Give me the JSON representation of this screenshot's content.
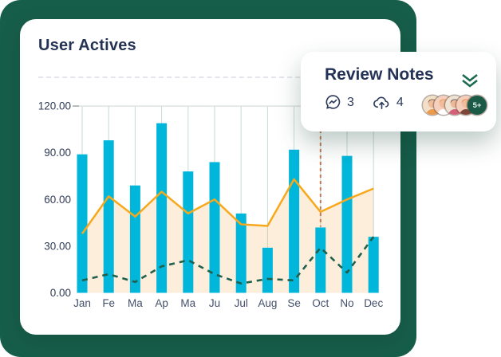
{
  "background_color": "#175E4A",
  "main_card": {
    "title": "User Actives"
  },
  "review_card": {
    "title": "Review Notes",
    "chevron_color": "#1D6A52",
    "comments": {
      "icon": "messenger-chat-icon",
      "count": "3"
    },
    "uploads": {
      "icon": "cloud-upload-icon",
      "count": "4"
    },
    "avatars": [
      {
        "bg": "#F2E0C8",
        "hair": "#6E4A36",
        "shirt": "#EE9A4D",
        "skin": "#F0BE9C"
      },
      {
        "bg": "#F6CFBF",
        "hair": "#E78F3E",
        "shirt": "#FFFFFF",
        "skin": "#F0BE9C"
      },
      {
        "bg": "#EFE4D4",
        "hair": "#52404E",
        "shirt": "#D5607A",
        "skin": "#EDB896"
      },
      {
        "bg": "#F4CDBB",
        "hair": "#E2813B",
        "shirt": "#7E4638",
        "skin": "#F0BE9C"
      }
    ],
    "overflow_badge": {
      "label": "5+",
      "bg": "#1A5A47",
      "color": "#EAF4EF"
    }
  },
  "chart_data": {
    "type": "bar",
    "subtype": "combo-bar-area-line",
    "title": "User Actives",
    "categories": [
      "Jan",
      "Fe",
      "Ma",
      "Ap",
      "Ma",
      "Ju",
      "Jul",
      "Aug",
      "Se",
      "Oct",
      "No",
      "Dec"
    ],
    "series": [
      {
        "name": "active-users-bars",
        "type": "bar",
        "color": "#00B7DB",
        "values": [
          89,
          98,
          69,
          109,
          78,
          84,
          51,
          29,
          92,
          42,
          88,
          36
        ]
      },
      {
        "name": "trend-area-line",
        "type": "area",
        "color": "#F7A81B",
        "fill": "rgba(243,152,40,0.16)",
        "values": [
          38,
          62,
          49,
          65,
          51,
          60,
          44,
          43,
          73,
          52,
          60,
          67
        ]
      },
      {
        "name": "secondary-dashed-line",
        "type": "line-dashed",
        "color": "#20604C",
        "values": [
          8,
          12,
          7,
          17,
          21,
          12,
          6,
          9,
          8,
          29,
          13,
          36
        ]
      }
    ],
    "y_axis": {
      "ticks": [
        {
          "value": 120,
          "label": "120.00"
        },
        {
          "value": 90,
          "label": "90.00"
        },
        {
          "value": 60,
          "label": "60.00"
        },
        {
          "value": 30,
          "label": "30.00"
        },
        {
          "value": 0,
          "label": "0.00"
        }
      ]
    },
    "ylim": [
      0,
      120
    ],
    "grid": "vertical-only",
    "legend": "none",
    "marker": {
      "category_index": 9,
      "category": "Oct",
      "color": "#C07B56",
      "style": "dashed-vertical"
    },
    "colors": {
      "grid": "#C9DAD3",
      "axis_top_line": "#D5DED9",
      "axis_tick": "#8FA0A8"
    }
  }
}
